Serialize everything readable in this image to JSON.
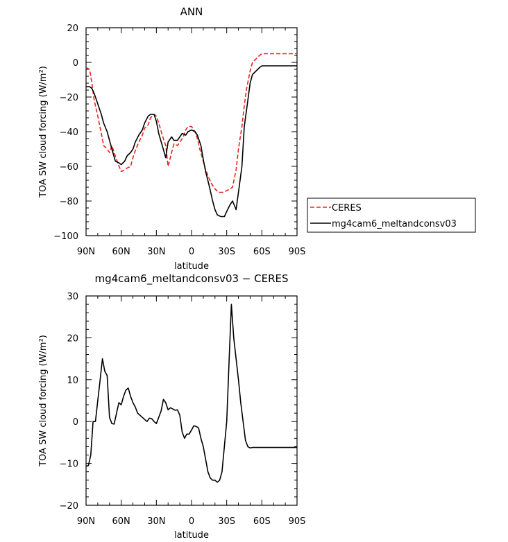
{
  "chart_data": [
    {
      "type": "line",
      "title": "ANN",
      "xlabel": "latitude",
      "ylabel": "TOA SW cloud forcing (W/m²)",
      "xlim": [
        -90,
        90
      ],
      "ylim": [
        -100,
        20
      ],
      "xticks": [
        -90,
        -60,
        -30,
        0,
        30,
        60,
        90
      ],
      "xticklabels": [
        "90N",
        "60N",
        "30N",
        "0",
        "30S",
        "60S",
        "90S"
      ],
      "yticks": [
        -100,
        -80,
        -60,
        -40,
        -20,
        0,
        20
      ],
      "yticklabels": [
        "−100",
        "−80",
        "−60",
        "−40",
        "−20",
        "0",
        "20"
      ],
      "legend_position": "right",
      "series": [
        {
          "name": "CERES",
          "color": "#e8231e",
          "dash": "dashed",
          "x": [
            -90,
            -87,
            -85,
            -83,
            -80,
            -77,
            -75,
            -72,
            -70,
            -68,
            -65,
            -63,
            -60,
            -57,
            -55,
            -52,
            -50,
            -48,
            -45,
            -42,
            -40,
            -37,
            -35,
            -32,
            -30,
            -28,
            -25,
            -22,
            -20,
            -17,
            -15,
            -12,
            -10,
            -7,
            -5,
            -3,
            0,
            3,
            5,
            7,
            10,
            12,
            15,
            17,
            20,
            23,
            25,
            27,
            30,
            33,
            35,
            38,
            40,
            43,
            45,
            47,
            50,
            52,
            55,
            58,
            60,
            62,
            65,
            67,
            70,
            72,
            75,
            77,
            80,
            83,
            85,
            88,
            90
          ],
          "y": [
            -3,
            -4,
            -12,
            -22,
            -31,
            -41,
            -48,
            -50,
            -52,
            -48,
            -54,
            -58,
            -63,
            -62,
            -61,
            -60,
            -55,
            -51,
            -46,
            -42,
            -38,
            -36,
            -32,
            -30,
            -31,
            -35,
            -42,
            -48,
            -60,
            -52,
            -47,
            -48,
            -46,
            -43,
            -39,
            -37,
            -37,
            -40,
            -44,
            -50,
            -57,
            -62,
            -67,
            -70,
            -73,
            -75,
            -75,
            -75,
            -74,
            -73,
            -72,
            -62,
            -50,
            -37,
            -25,
            -15,
            -5,
            0,
            2,
            4,
            5,
            5,
            5,
            5,
            5,
            5,
            5,
            5,
            5,
            5,
            5,
            5,
            5
          ]
        },
        {
          "name": "mg4cam6_meltandconsv03",
          "color": "#000000",
          "dash": "solid",
          "x": [
            -90,
            -87,
            -85,
            -83,
            -80,
            -77,
            -75,
            -72,
            -70,
            -68,
            -65,
            -62,
            -60,
            -57,
            -55,
            -52,
            -50,
            -48,
            -45,
            -42,
            -40,
            -37,
            -35,
            -32,
            -30,
            -28,
            -25,
            -22,
            -20,
            -17,
            -15,
            -12,
            -10,
            -8,
            -5,
            -3,
            0,
            3,
            5,
            8,
            10,
            12,
            15,
            18,
            20,
            22,
            25,
            28,
            30,
            33,
            35,
            38,
            40,
            43,
            45,
            48,
            50,
            52,
            55,
            58,
            60,
            62,
            65,
            68,
            70,
            73,
            75,
            78,
            80,
            83,
            85,
            88,
            90
          ],
          "y": [
            -14,
            -14,
            -15,
            -18,
            -24,
            -30,
            -35,
            -40,
            -45,
            -50,
            -57,
            -58,
            -59,
            -57,
            -54,
            -52,
            -50,
            -46,
            -42,
            -39,
            -35,
            -31,
            -30,
            -30,
            -34,
            -41,
            -48,
            -55,
            -46,
            -43,
            -45,
            -45,
            -43,
            -41,
            -42,
            -40,
            -39,
            -40,
            -42,
            -48,
            -56,
            -63,
            -71,
            -80,
            -85,
            -88,
            -89,
            -89,
            -86,
            -82,
            -80,
            -85,
            -75,
            -60,
            -37,
            -22,
            -12,
            -7,
            -5,
            -3,
            -2,
            -2,
            -2,
            -2,
            -2,
            -2,
            -2,
            -2,
            -2,
            -2,
            -2,
            -2,
            -2
          ]
        }
      ]
    },
    {
      "type": "line",
      "title": "mg4cam6_meltandconsv03 − CERES",
      "xlabel": "latitude",
      "ylabel": "TOA SW cloud forcing (W/m²)",
      "xlim": [
        -90,
        90
      ],
      "ylim": [
        -20,
        30
      ],
      "xticks": [
        -90,
        -60,
        -30,
        0,
        30,
        60,
        90
      ],
      "xticklabels": [
        "90N",
        "60N",
        "30N",
        "0",
        "30S",
        "60S",
        "90S"
      ],
      "yticks": [
        -20,
        -10,
        0,
        10,
        20,
        30
      ],
      "yticklabels": [
        "−20",
        "−10",
        "0",
        "10",
        "20",
        "30"
      ],
      "series": [
        {
          "color": "#000000",
          "dash": "solid",
          "x": [
            -90,
            -88,
            -86,
            -84,
            -82,
            -80,
            -78,
            -76,
            -74,
            -72,
            -70,
            -68,
            -66,
            -64,
            -62,
            -60,
            -58,
            -56,
            -54,
            -52,
            -50,
            -48,
            -46,
            -44,
            -42,
            -40,
            -38,
            -36,
            -34,
            -32,
            -30,
            -28,
            -26,
            -24,
            -22,
            -20,
            -18,
            -16,
            -14,
            -12,
            -10,
            -8,
            -6,
            -4,
            -2,
            0,
            2,
            4,
            6,
            8,
            10,
            12,
            14,
            16,
            18,
            20,
            22,
            24,
            26,
            28,
            30,
            32,
            34,
            36,
            38,
            40,
            42,
            44,
            46,
            48,
            50,
            52,
            54,
            56,
            58,
            60,
            62,
            64,
            66,
            68,
            70,
            72,
            74,
            76,
            78,
            80,
            82,
            84,
            86,
            88,
            90
          ],
          "y": [
            -10.7,
            -10.5,
            -8,
            0,
            0,
            5,
            10,
            15,
            12,
            11,
            1,
            -0.5,
            -0.6,
            2,
            4.5,
            4,
            6,
            7.5,
            8,
            6,
            4.5,
            3.5,
            2,
            1.5,
            1,
            0.5,
            0,
            0.8,
            0.7,
            0,
            -0.5,
            1,
            2.5,
            5.3,
            4.5,
            2.8,
            3.3,
            3,
            2.7,
            2.8,
            1.5,
            -2.5,
            -4,
            -3,
            -3,
            -2,
            -1,
            -1.2,
            -1.5,
            -4,
            -6,
            -9,
            -12,
            -13.5,
            -14,
            -14,
            -14.5,
            -14,
            -12,
            -6,
            0,
            14,
            28,
            20,
            15,
            10,
            4.5,
            0,
            -4.5,
            -6,
            -6.3,
            -6.2,
            -6.2,
            -6.2,
            -6.2,
            -6.2,
            -6.2,
            -6.2,
            -6.2,
            -6.2,
            -6.2,
            -6.2,
            -6.2,
            -6.2,
            -6.2,
            -6.2,
            -6.2,
            -6.2,
            -6.2,
            -6.2,
            -6.2
          ]
        }
      ]
    }
  ]
}
